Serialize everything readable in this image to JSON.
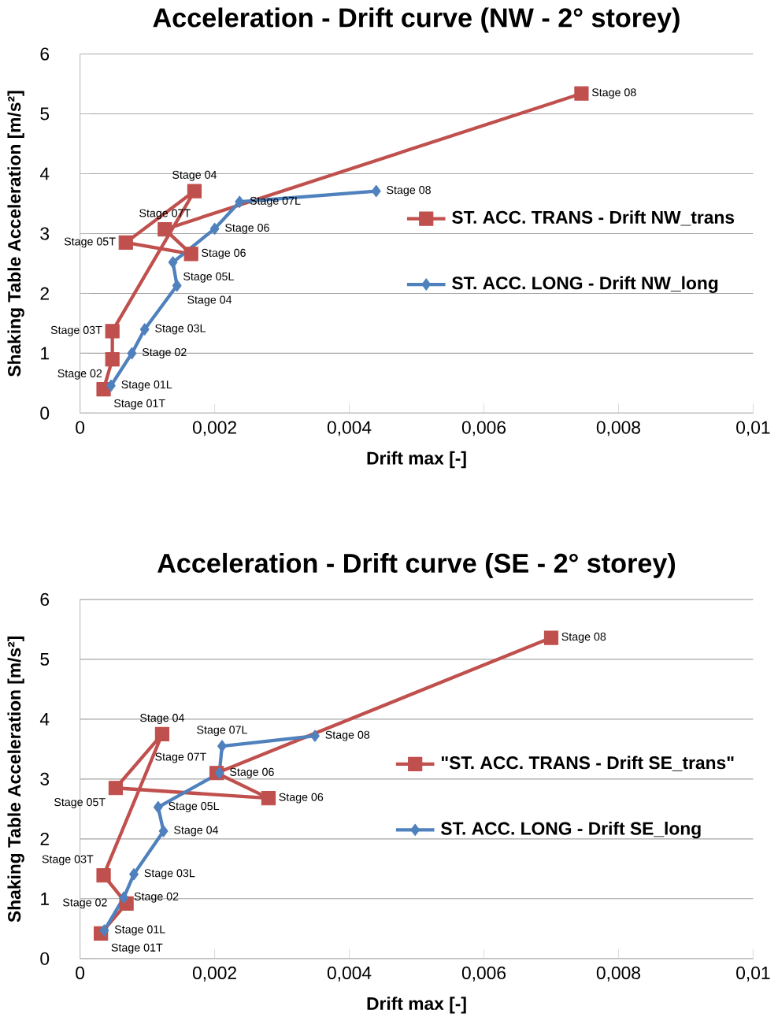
{
  "chart_data": [
    {
      "type": "line",
      "title": "Acceleration - Drift curve (NW - 2° storey)",
      "xlabel": "Drift max [-]",
      "ylabel": "Shaking Table  Acceleration [m/s²]",
      "xlim": [
        0,
        0.01
      ],
      "ylim": [
        0,
        6
      ],
      "xticks": [
        0,
        {
          "value": 0.002,
          "label": "0,002"
        },
        {
          "value": 0.004,
          "label": "0,004"
        },
        {
          "value": 0.006,
          "label": "0,006"
        },
        {
          "value": 0.008,
          "label": "0,008"
        },
        {
          "value": 0.01,
          "label": "0,01"
        }
      ],
      "yticks": [
        0,
        1,
        2,
        3,
        4,
        5,
        6
      ],
      "grid": "y",
      "legend": "right",
      "series": [
        {
          "name": "ST. ACC. TRANS - Drift NW_trans",
          "color": "#c0504d",
          "marker": "square",
          "x": [
            0.00035,
            0.00048,
            0.00048,
            0.0017,
            0.00068,
            0.00165,
            0.00126,
            0.00745
          ],
          "values": [
            0.4,
            0.9,
            1.37,
            3.71,
            2.85,
            2.66,
            3.07,
            5.34
          ]
        },
        {
          "name": "ST. ACC. LONG - Drift NW_long",
          "color": "#4f81bd",
          "marker": "diamond",
          "x": [
            0.00046,
            0.00077,
            0.00096,
            0.00144,
            0.00138,
            0.002,
            0.00237,
            0.0044
          ],
          "values": [
            0.46,
            1.0,
            1.4,
            2.13,
            2.52,
            3.08,
            3.53,
            3.71
          ]
        }
      ],
      "annotations": [
        {
          "text": "Stage 01T",
          "x": 0.00035,
          "y": 0.4
        },
        {
          "text": "Stage 02",
          "x": 0.00048,
          "y": 0.9
        },
        {
          "text": "Stage 03T",
          "x": 0.00048,
          "y": 1.37
        },
        {
          "text": "Stage 04",
          "x": 0.0017,
          "y": 3.71
        },
        {
          "text": "Stage 05T",
          "x": 0.00068,
          "y": 2.85
        },
        {
          "text": "Stage 06",
          "x": 0.00165,
          "y": 2.66
        },
        {
          "text": "Stage 07T",
          "x": 0.00126,
          "y": 3.07
        },
        {
          "text": "Stage 08",
          "x": 0.00745,
          "y": 5.34
        },
        {
          "text": "Stage 01L",
          "x": 0.00046,
          "y": 0.46
        },
        {
          "text": "Stage 02",
          "x": 0.00077,
          "y": 1.0
        },
        {
          "text": "Stage 03L",
          "x": 0.00096,
          "y": 1.4
        },
        {
          "text": "Stage 04",
          "x": 0.00144,
          "y": 2.13
        },
        {
          "text": "Stage 05L",
          "x": 0.00138,
          "y": 2.52
        },
        {
          "text": "Stage 06",
          "x": 0.002,
          "y": 3.08
        },
        {
          "text": "Stage 07L",
          "x": 0.00237,
          "y": 3.53
        },
        {
          "text": "Stage 08",
          "x": 0.0044,
          "y": 3.71
        }
      ]
    },
    {
      "type": "line",
      "title": "Acceleration - Drift curve (SE - 2° storey)",
      "xlabel": "Drift max [-]",
      "ylabel": "Shaking Table  Acceleration [m/s²]",
      "xlim": [
        0,
        0.01
      ],
      "ylim": [
        0,
        6
      ],
      "xticks": [
        0,
        {
          "value": 0.002,
          "label": "0,002"
        },
        {
          "value": 0.004,
          "label": "0,004"
        },
        {
          "value": 0.006,
          "label": "0,006"
        },
        {
          "value": 0.008,
          "label": "0,008"
        },
        {
          "value": 0.01,
          "label": "0,01"
        }
      ],
      "yticks": [
        0,
        1,
        2,
        3,
        4,
        5,
        6
      ],
      "grid": "y",
      "legend": "right",
      "series": [
        {
          "name": "\"ST. ACC. TRANS - Drift SE_trans\"",
          "color": "#c0504d",
          "marker": "square",
          "x": [
            0.00031,
            0.00069,
            0.00035,
            0.00122,
            0.00053,
            0.0028,
            0.00203,
            0.007
          ],
          "values": [
            0.42,
            0.92,
            1.39,
            3.75,
            2.85,
            2.68,
            3.1,
            5.36
          ]
        },
        {
          "name": "ST. ACC. LONG - Drift SE_long",
          "color": "#4f81bd",
          "marker": "diamond",
          "x": [
            0.00036,
            0.00065,
            0.0008,
            0.00124,
            0.00116,
            0.00207,
            0.00211,
            0.00349
          ],
          "values": [
            0.47,
            1.02,
            1.41,
            2.13,
            2.53,
            3.1,
            3.55,
            3.72
          ]
        }
      ],
      "annotations": [
        {
          "text": "Stage 01T",
          "x": 0.00031,
          "y": 0.42
        },
        {
          "text": "Stage 02",
          "x": 0.00069,
          "y": 0.92
        },
        {
          "text": "Stage 03T",
          "x": 0.00035,
          "y": 1.39
        },
        {
          "text": "Stage 04",
          "x": 0.00122,
          "y": 3.75
        },
        {
          "text": "Stage 05T",
          "x": 0.00053,
          "y": 2.85
        },
        {
          "text": "Stage 06",
          "x": 0.0028,
          "y": 2.68
        },
        {
          "text": "Stage 07T",
          "x": 0.00203,
          "y": 3.1
        },
        {
          "text": "Stage 08",
          "x": 0.007,
          "y": 5.36
        },
        {
          "text": "Stage 01L",
          "x": 0.00036,
          "y": 0.47
        },
        {
          "text": "Stage 02",
          "x": 0.00065,
          "y": 1.02
        },
        {
          "text": "Stage 03L",
          "x": 0.0008,
          "y": 1.41
        },
        {
          "text": "Stage 04",
          "x": 0.00124,
          "y": 2.13
        },
        {
          "text": "Stage 05L",
          "x": 0.00116,
          "y": 2.53
        },
        {
          "text": "Stage 06",
          "x": 0.00207,
          "y": 3.1
        },
        {
          "text": "Stage 07L",
          "x": 0.00211,
          "y": 3.55
        },
        {
          "text": "Stage 08",
          "x": 0.00349,
          "y": 3.72
        }
      ]
    }
  ]
}
